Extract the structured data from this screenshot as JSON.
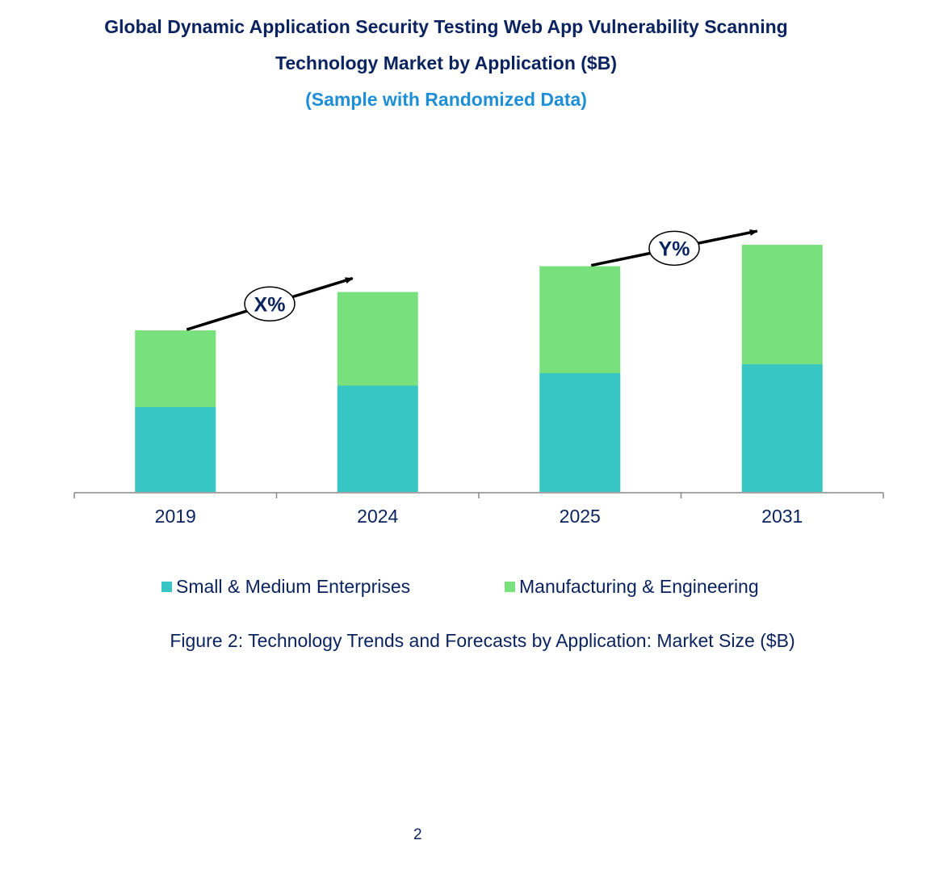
{
  "chart_data": {
    "type": "bar",
    "stacked": true,
    "title": "Global Dynamic Application Security Testing Web App Vulnerability Scanning Technology Market by Application ($B)",
    "title_line1": "Global Dynamic Application Security Testing Web App Vulnerability Scanning",
    "title_line2": "Technology Market by Application ($B)",
    "subtitle": "(Sample with Randomized Data)",
    "categories": [
      "2019",
      "2024",
      "2025",
      "2031"
    ],
    "series": [
      {
        "name": "Small & Medium Enterprises",
        "color": "#37C6C3",
        "values": [
          11.5,
          14.4,
          16.1,
          17.3
        ]
      },
      {
        "name": "Manufacturing & Engineering",
        "color": "#79E07E",
        "values": [
          10.4,
          12.7,
          14.5,
          16.2
        ]
      }
    ],
    "ylim": [
      0,
      35
    ],
    "grid": false,
    "y_axis_shown": false,
    "legend_position": "bottom",
    "annotations": [
      {
        "label": "X%",
        "from": "2019",
        "to": "2024"
      },
      {
        "label": "Y%",
        "from": "2025",
        "to": "2031"
      }
    ]
  },
  "caption": "Figure 2: Technology Trends and Forecasts by Application: Market Size ($B)",
  "page_number": "2",
  "colors": {
    "title": "#0B2460",
    "subtitle": "#1E8ED6"
  }
}
